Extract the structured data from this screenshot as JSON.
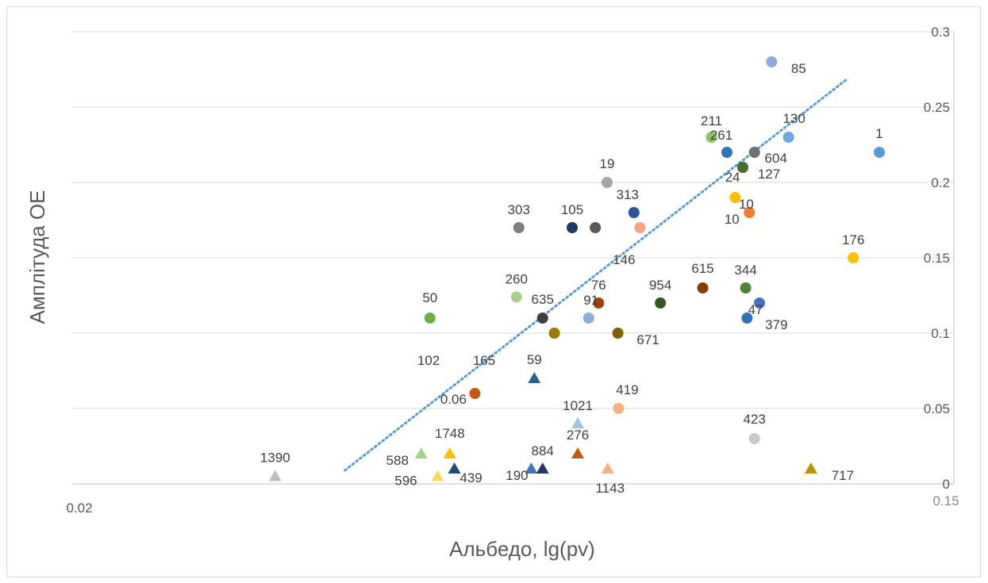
{
  "chart_data": {
    "type": "scatter",
    "title": "",
    "xlabel": "Альбедо, lg(pv)",
    "ylabel": "Амплітуда ОЕ",
    "x_scale": "log",
    "xlim": [
      0.02,
      0.15
    ],
    "ylim": [
      0,
      0.3
    ],
    "x_tick_labels": [
      "0.02",
      "0.15"
    ],
    "y_ticks": [
      0,
      0.05,
      0.1,
      0.15,
      0.2,
      0.25,
      0.3
    ],
    "y_tick_labels": [
      "0",
      "0.05",
      "0.1",
      "0.15",
      "0.2",
      "0.25",
      "0.3"
    ],
    "y_axis_position": "right",
    "grid": "horizontal",
    "legend": "none",
    "trendline": {
      "style": "dotted",
      "color": "#5b9bd5",
      "from": [
        0.0373,
        0.009
      ],
      "to": [
        0.1172,
        0.268
      ]
    },
    "points": [
      {
        "label": "85",
        "x": 0.0989,
        "y": 0.28,
        "marker": "circle",
        "color": "#8faadc"
      },
      {
        "label": "211",
        "x": 0.0862,
        "y": 0.23,
        "marker": "circle",
        "color": "#8ac565"
      },
      {
        "label": "130",
        "x": 0.1028,
        "y": 0.23,
        "marker": "circle",
        "color": "#6fa8dc"
      },
      {
        "label": "261",
        "x": 0.0893,
        "y": 0.22,
        "marker": "circle",
        "color": "#2e75b6"
      },
      {
        "label": "604",
        "x": 0.0951,
        "y": 0.22,
        "marker": "circle",
        "color": "#707070"
      },
      {
        "label": "1",
        "x": 0.1265,
        "y": 0.22,
        "marker": "circle",
        "color": "#5b9bd5"
      },
      {
        "label": "24",
        "x": 0.0926,
        "y": 0.21,
        "marker": "circle",
        "color": "#4a6e2c"
      },
      {
        "label": "127",
        "x": 0.0926,
        "y": 0.21,
        "marker": "circle",
        "color": "#4a6e2c"
      },
      {
        "label": "19",
        "x": 0.0679,
        "y": 0.2,
        "marker": "circle",
        "color": "#a5a5a5"
      },
      {
        "label": "10",
        "x": 0.091,
        "y": 0.19,
        "marker": "circle",
        "color": "#ffc000"
      },
      {
        "label": "313",
        "x": 0.0722,
        "y": 0.18,
        "marker": "circle",
        "color": "#2f5597"
      },
      {
        "label": "10",
        "x": 0.094,
        "y": 0.18,
        "marker": "circle",
        "color": "#ed7d31"
      },
      {
        "label": "303",
        "x": 0.0555,
        "y": 0.17,
        "marker": "circle",
        "color": "#7f7f7f"
      },
      {
        "label": "105",
        "x": 0.0627,
        "y": 0.17,
        "marker": "circle",
        "color": "#203864"
      },
      {
        "label": "105",
        "x": 0.0661,
        "y": 0.17,
        "marker": "circle",
        "color": "#595959"
      },
      {
        "label": "146",
        "x": 0.0732,
        "y": 0.17,
        "marker": "circle",
        "color": "#f4a582"
      },
      {
        "label": "176",
        "x": 0.1192,
        "y": 0.15,
        "marker": "circle",
        "color": "#ffc000"
      },
      {
        "label": "615",
        "x": 0.0845,
        "y": 0.13,
        "marker": "circle",
        "color": "#843c0c"
      },
      {
        "label": "344",
        "x": 0.0932,
        "y": 0.13,
        "marker": "circle",
        "color": "#548235"
      },
      {
        "label": "260",
        "x": 0.0552,
        "y": 0.124,
        "marker": "circle",
        "color": "#a9d18e"
      },
      {
        "label": "76",
        "x": 0.0666,
        "y": 0.12,
        "marker": "circle",
        "color": "#a0410d"
      },
      {
        "label": "954",
        "x": 0.0767,
        "y": 0.12,
        "marker": "circle",
        "color": "#375623"
      },
      {
        "label": "47",
        "x": 0.0962,
        "y": 0.12,
        "marker": "circle",
        "color": "#4472c4"
      },
      {
        "label": "50",
        "x": 0.0453,
        "y": 0.11,
        "marker": "circle",
        "color": "#70ad47"
      },
      {
        "label": "635",
        "x": 0.0586,
        "y": 0.11,
        "marker": "circle",
        "color": "#404040"
      },
      {
        "label": "91",
        "x": 0.0651,
        "y": 0.11,
        "marker": "circle",
        "color": "#8faadc"
      },
      {
        "label": "379",
        "x": 0.0935,
        "y": 0.11,
        "marker": "circle",
        "color": "#2e75b6"
      },
      {
        "label": "635",
        "x": 0.0602,
        "y": 0.1,
        "marker": "circle",
        "color": "#9c7a00"
      },
      {
        "label": "671",
        "x": 0.0696,
        "y": 0.1,
        "marker": "circle",
        "color": "#7f6000"
      },
      {
        "label": "0.06",
        "x": 0.0502,
        "y": 0.06,
        "marker": "circle",
        "color": "#c55a11"
      },
      {
        "label": "419",
        "x": 0.0697,
        "y": 0.05,
        "marker": "circle",
        "color": "#f4b183"
      },
      {
        "label": "423",
        "x": 0.0951,
        "y": 0.03,
        "marker": "circle",
        "color": "#c9c9c9"
      },
      {
        "label": "59",
        "x": 0.0575,
        "y": 0.07,
        "marker": "triangle",
        "color": "#2e5f8a"
      },
      {
        "label": "1021",
        "x": 0.0635,
        "y": 0.04,
        "marker": "triangle",
        "color": "#9dc3e6"
      },
      {
        "label": "276",
        "x": 0.0635,
        "y": 0.02,
        "marker": "triangle",
        "color": "#c55a11"
      },
      {
        "label": "1390",
        "x": 0.0318,
        "y": 0.005,
        "marker": "triangle",
        "color": "#bfbfbf"
      },
      {
        "label": "588",
        "x": 0.0444,
        "y": 0.02,
        "marker": "triangle",
        "color": "#a9d18e"
      },
      {
        "label": "1748",
        "x": 0.0474,
        "y": 0.02,
        "marker": "triangle",
        "color": "#ffc000"
      },
      {
        "label": "596",
        "x": 0.0461,
        "y": 0.005,
        "marker": "triangle",
        "color": "#ffd966"
      },
      {
        "label": "439",
        "x": 0.0479,
        "y": 0.01,
        "marker": "triangle",
        "color": "#1f4e79"
      },
      {
        "label": "190",
        "x": 0.0571,
        "y": 0.01,
        "marker": "triangle",
        "color": "#4472c4"
      },
      {
        "label": "884",
        "x": 0.0586,
        "y": 0.01,
        "marker": "triangle",
        "color": "#203864"
      },
      {
        "label": "1143",
        "x": 0.068,
        "y": 0.01,
        "marker": "triangle",
        "color": "#f4b183"
      },
      {
        "label": "717",
        "x": 0.1082,
        "y": 0.01,
        "marker": "triangle",
        "color": "#bf9000"
      }
    ],
    "extra_labels": [
      "102",
      "165"
    ]
  }
}
